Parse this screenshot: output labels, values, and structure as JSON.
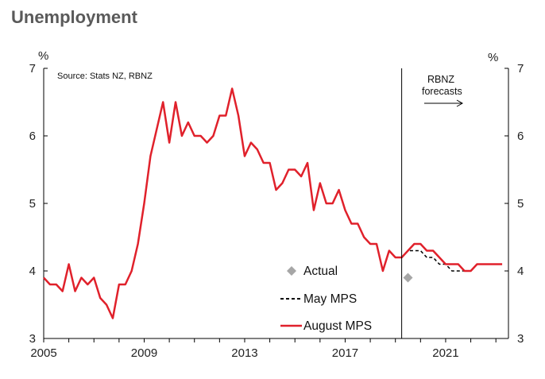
{
  "chart_data": {
    "type": "line",
    "title": "Unemployment",
    "source": "Source: Stats NZ, RBNZ",
    "y_unit_left": "%",
    "y_unit_right": "%",
    "xlim": [
      2005,
      2023.5
    ],
    "ylim": [
      3,
      7
    ],
    "y_ticks": [
      3,
      4,
      5,
      6,
      7
    ],
    "x_ticks": [
      2005,
      2009,
      2013,
      2017,
      2021
    ],
    "y_tick_labels": [
      "3",
      "4",
      "5",
      "6",
      "7"
    ],
    "x_tick_labels": [
      "2005",
      "2009",
      "2013",
      "2017",
      "2021"
    ],
    "grid": false,
    "legend_position": "bottom-right",
    "annotation": {
      "text_line1": "RBNZ",
      "text_line2": "forecasts",
      "divider_x": 2019.25,
      "arrow_symbol": "→"
    },
    "series": [
      {
        "name": "Actual",
        "kind": "scatter",
        "marker": "diamond",
        "color": "#a6a6a6",
        "points": [
          {
            "x": 2019.5,
            "y": 3.9
          }
        ]
      },
      {
        "name": "May MPS",
        "kind": "line",
        "style": "dashed",
        "color": "#000000",
        "points": [
          {
            "x": 2019.25,
            "y": 4.2
          },
          {
            "x": 2019.5,
            "y": 4.3
          },
          {
            "x": 2019.75,
            "y": 4.3
          },
          {
            "x": 2020.0,
            "y": 4.3
          },
          {
            "x": 2020.25,
            "y": 4.2
          },
          {
            "x": 2020.5,
            "y": 4.2
          },
          {
            "x": 2020.75,
            "y": 4.1
          },
          {
            "x": 2021.0,
            "y": 4.1
          },
          {
            "x": 2021.25,
            "y": 4.0
          },
          {
            "x": 2021.5,
            "y": 4.0
          },
          {
            "x": 2021.75,
            "y": 4.0
          },
          {
            "x": 2022.0,
            "y": 4.0
          },
          {
            "x": 2022.25,
            "y": 4.1
          },
          {
            "x": 2022.5,
            "y": 4.1
          },
          {
            "x": 2022.75,
            "y": 4.1
          },
          {
            "x": 2023.0,
            "y": 4.1
          },
          {
            "x": 2023.25,
            "y": 4.1
          }
        ]
      },
      {
        "name": "August MPS",
        "kind": "line",
        "style": "solid",
        "color": "#e0212b",
        "points": [
          {
            "x": 2005.0,
            "y": 3.9
          },
          {
            "x": 2005.25,
            "y": 3.8
          },
          {
            "x": 2005.5,
            "y": 3.8
          },
          {
            "x": 2005.75,
            "y": 3.7
          },
          {
            "x": 2006.0,
            "y": 4.1
          },
          {
            "x": 2006.25,
            "y": 3.7
          },
          {
            "x": 2006.5,
            "y": 3.9
          },
          {
            "x": 2006.75,
            "y": 3.8
          },
          {
            "x": 2007.0,
            "y": 3.9
          },
          {
            "x": 2007.25,
            "y": 3.6
          },
          {
            "x": 2007.5,
            "y": 3.5
          },
          {
            "x": 2007.75,
            "y": 3.3
          },
          {
            "x": 2008.0,
            "y": 3.8
          },
          {
            "x": 2008.25,
            "y": 3.8
          },
          {
            "x": 2008.5,
            "y": 4.0
          },
          {
            "x": 2008.75,
            "y": 4.4
          },
          {
            "x": 2009.0,
            "y": 5.0
          },
          {
            "x": 2009.25,
            "y": 5.7
          },
          {
            "x": 2009.5,
            "y": 6.1
          },
          {
            "x": 2009.75,
            "y": 6.5
          },
          {
            "x": 2010.0,
            "y": 5.9
          },
          {
            "x": 2010.25,
            "y": 6.5
          },
          {
            "x": 2010.5,
            "y": 6.0
          },
          {
            "x": 2010.75,
            "y": 6.2
          },
          {
            "x": 2011.0,
            "y": 6.0
          },
          {
            "x": 2011.25,
            "y": 6.0
          },
          {
            "x": 2011.5,
            "y": 5.9
          },
          {
            "x": 2011.75,
            "y": 6.0
          },
          {
            "x": 2012.0,
            "y": 6.3
          },
          {
            "x": 2012.25,
            "y": 6.3
          },
          {
            "x": 2012.5,
            "y": 6.7
          },
          {
            "x": 2012.75,
            "y": 6.3
          },
          {
            "x": 2013.0,
            "y": 5.7
          },
          {
            "x": 2013.25,
            "y": 5.9
          },
          {
            "x": 2013.5,
            "y": 5.8
          },
          {
            "x": 2013.75,
            "y": 5.6
          },
          {
            "x": 2014.0,
            "y": 5.6
          },
          {
            "x": 2014.25,
            "y": 5.2
          },
          {
            "x": 2014.5,
            "y": 5.3
          },
          {
            "x": 2014.75,
            "y": 5.5
          },
          {
            "x": 2015.0,
            "y": 5.5
          },
          {
            "x": 2015.25,
            "y": 5.4
          },
          {
            "x": 2015.5,
            "y": 5.6
          },
          {
            "x": 2015.75,
            "y": 4.9
          },
          {
            "x": 2016.0,
            "y": 5.3
          },
          {
            "x": 2016.25,
            "y": 5.0
          },
          {
            "x": 2016.5,
            "y": 5.0
          },
          {
            "x": 2016.75,
            "y": 5.2
          },
          {
            "x": 2017.0,
            "y": 4.9
          },
          {
            "x": 2017.25,
            "y": 4.7
          },
          {
            "x": 2017.5,
            "y": 4.7
          },
          {
            "x": 2017.75,
            "y": 4.5
          },
          {
            "x": 2018.0,
            "y": 4.4
          },
          {
            "x": 2018.25,
            "y": 4.4
          },
          {
            "x": 2018.5,
            "y": 4.0
          },
          {
            "x": 2018.75,
            "y": 4.3
          },
          {
            "x": 2019.0,
            "y": 4.2
          },
          {
            "x": 2019.25,
            "y": 4.2
          },
          {
            "x": 2019.5,
            "y": 4.3
          },
          {
            "x": 2019.75,
            "y": 4.4
          },
          {
            "x": 2020.0,
            "y": 4.4
          },
          {
            "x": 2020.25,
            "y": 4.3
          },
          {
            "x": 2020.5,
            "y": 4.3
          },
          {
            "x": 2020.75,
            "y": 4.2
          },
          {
            "x": 2021.0,
            "y": 4.1
          },
          {
            "x": 2021.25,
            "y": 4.1
          },
          {
            "x": 2021.5,
            "y": 4.1
          },
          {
            "x": 2021.75,
            "y": 4.0
          },
          {
            "x": 2022.0,
            "y": 4.0
          },
          {
            "x": 2022.25,
            "y": 4.1
          },
          {
            "x": 2022.5,
            "y": 4.1
          },
          {
            "x": 2022.75,
            "y": 4.1
          },
          {
            "x": 2023.0,
            "y": 4.1
          },
          {
            "x": 2023.25,
            "y": 4.1
          }
        ]
      }
    ]
  }
}
